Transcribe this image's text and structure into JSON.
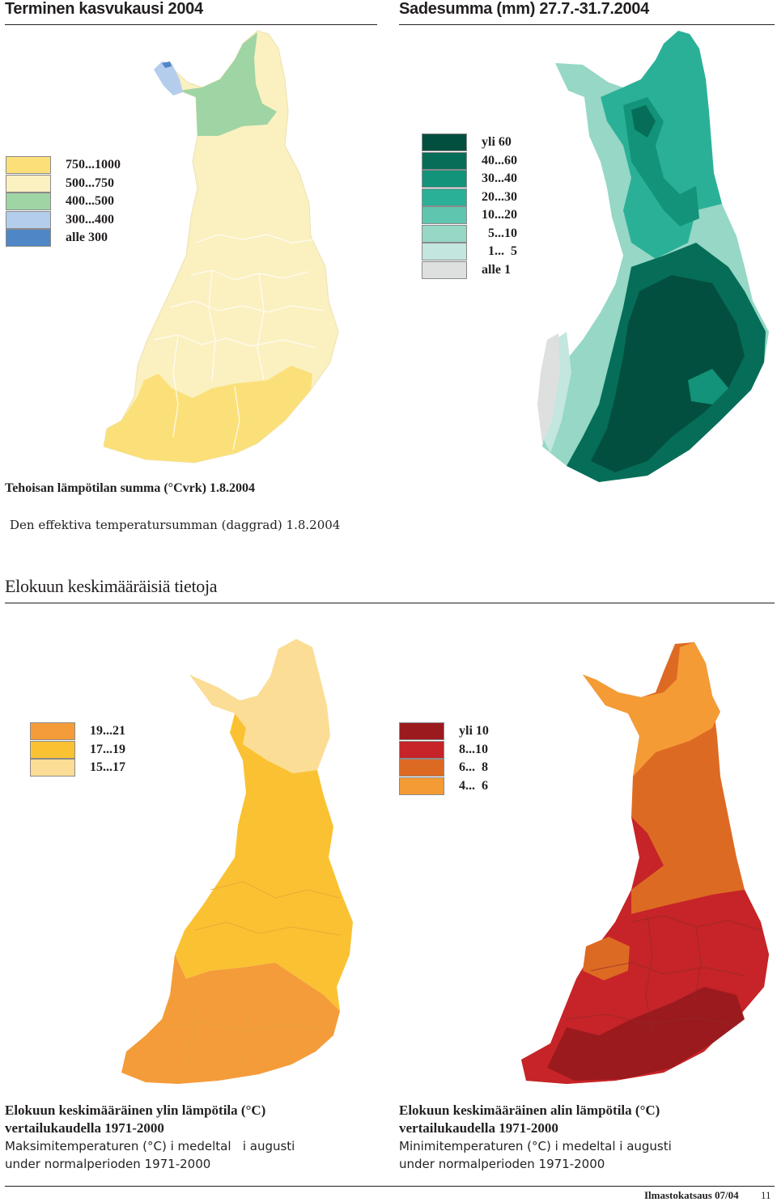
{
  "top_left": {
    "title": "Terminen kasvukausi 2004",
    "legend": [
      {
        "label": "750...1000",
        "color": "#fbe07a"
      },
      {
        "label": "500...750",
        "color": "#fbf0c0"
      },
      {
        "label": "400...500",
        "color": "#9fd4a4"
      },
      {
        "label": "300...400",
        "color": "#b5cdec"
      },
      {
        "label": "alle 300",
        "color": "#4f86c6"
      }
    ],
    "caption_fi": "Tehoisan lämpötilan summa (°Cvrk)  1.8.2004",
    "caption_sv": "Den effektiva temperatursumman (daggrad) 1.8.2004"
  },
  "top_right": {
    "title": "Sadesumma (mm) 27.7.-31.7.2004",
    "legend": [
      {
        "label": "yli 60",
        "color": "#034f3f"
      },
      {
        "label": "40...60",
        "color": "#066e58"
      },
      {
        "label": "30...40",
        "color": "#12937a"
      },
      {
        "label": "20...30",
        "color": "#2bb098"
      },
      {
        "label": "10...20",
        "color": "#5ec5ae"
      },
      {
        "label": "  5...10",
        "color": "#96d7c6"
      },
      {
        "label": "  1...  5",
        "color": "#c3e6df"
      },
      {
        "label": "alle 1",
        "color": "#dde0df"
      }
    ]
  },
  "section_title": "Elokuun keskimääräisiä tietoja",
  "bottom_left": {
    "legend": [
      {
        "label": "19...21",
        "color": "#f49c3a"
      },
      {
        "label": "17...19",
        "color": "#fac232"
      },
      {
        "label": "15...17",
        "color": "#fbdd95"
      }
    ],
    "caption_line1": "Elokuun keskimääräinen ylin lämpötila (°C)",
    "caption_line2": "vertailukaudella 1971-2000",
    "caption_line3": "Maksimitemperaturen (°C) i medeltal   i augusti",
    "caption_line4": "under normalperioden 1971-2000"
  },
  "bottom_right": {
    "legend": [
      {
        "label": "yli 10",
        "color": "#9b1a1e"
      },
      {
        "label": "8...10",
        "color": "#c62428"
      },
      {
        "label": "6...  8",
        "color": "#dd6a23"
      },
      {
        "label": "4...  6",
        "color": "#f49b35"
      }
    ],
    "caption_line1": "Elokuun keskimääräinen alin lämpötila (°C)",
    "caption_line2": "vertailukaudella 1971-2000",
    "caption_line3": "Minimitemperaturen (°C) i medeltal i augusti",
    "caption_line4": "under normalperioden 1971-2000"
  },
  "footer": {
    "publication": "Ilmastokatsaus 07/04",
    "page_number": "11"
  }
}
